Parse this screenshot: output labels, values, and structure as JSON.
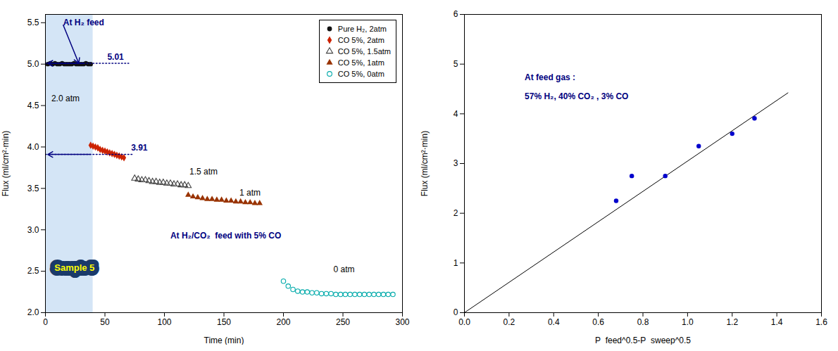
{
  "chart_data": [
    {
      "type": "scatter",
      "xlabel": "Time (min)",
      "ylabel": "Flux (ml/cm²·min)",
      "xlim": [
        0,
        300
      ],
      "ylim": [
        2.0,
        5.6
      ],
      "xticks": [
        0,
        50,
        100,
        150,
        200,
        250,
        300
      ],
      "yticks": [
        {
          "value": 2.0,
          "label": "2.0"
        },
        2.5,
        {
          "value": 3.0,
          "label": "3.0"
        },
        3.5,
        {
          "value": 4.0,
          "label": "4.0"
        },
        4.5,
        {
          "value": 5.0,
          "label": "5.0"
        },
        5.5
      ],
      "grid": false,
      "legend": "upper right",
      "series": [
        {
          "name": "Pure H₂, 2atm",
          "color": "#111111",
          "marker": "circle",
          "x": [
            2,
            4,
            6,
            8,
            10,
            12,
            14,
            16,
            18,
            20,
            22,
            24,
            26,
            28,
            30,
            32,
            34,
            36,
            38
          ],
          "values": [
            5.0,
            5.01,
            5.0,
            5.01,
            5.0,
            5.0,
            5.01,
            5.0,
            5.0,
            5.0,
            5.0,
            5.01,
            5.0,
            5.0,
            5.0,
            5.0,
            5.01,
            5.0,
            5.0
          ]
        },
        {
          "name": "CO 5%, 2atm",
          "color": "#cc2200",
          "marker": "diamond",
          "x": [
            38,
            40,
            42,
            44,
            46,
            48,
            50,
            52,
            54,
            56,
            58,
            60,
            62,
            64,
            66
          ],
          "values": [
            4.02,
            4.01,
            4.0,
            3.99,
            3.97,
            3.96,
            3.95,
            3.94,
            3.93,
            3.92,
            3.91,
            3.9,
            3.89,
            3.88,
            3.87
          ]
        },
        {
          "name": "CO 5%, 1.5atm",
          "color": "#444444",
          "marker": "triangle-open",
          "x": [
            75,
            78,
            81,
            84,
            87,
            90,
            93,
            96,
            99,
            102,
            105,
            108,
            111,
            114,
            117,
            120
          ],
          "values": [
            3.62,
            3.61,
            3.6,
            3.6,
            3.59,
            3.58,
            3.58,
            3.57,
            3.57,
            3.56,
            3.56,
            3.55,
            3.55,
            3.54,
            3.54,
            3.53
          ]
        },
        {
          "name": "CO 5%, 1atm",
          "color": "#993300",
          "marker": "triangle",
          "x": [
            120,
            124,
            128,
            132,
            136,
            140,
            144,
            148,
            152,
            156,
            160,
            164,
            168,
            172,
            176,
            180
          ],
          "values": [
            3.42,
            3.4,
            3.39,
            3.38,
            3.37,
            3.37,
            3.36,
            3.36,
            3.35,
            3.35,
            3.34,
            3.34,
            3.33,
            3.33,
            3.32,
            3.32
          ]
        },
        {
          "name": "CO 5%, 0atm",
          "color": "#00aaaa",
          "marker": "circle-open",
          "x": [
            200,
            204,
            208,
            212,
            216,
            220,
            224,
            228,
            232,
            236,
            240,
            244,
            248,
            252,
            256,
            260,
            264,
            268,
            272,
            276,
            280,
            284,
            288,
            292
          ],
          "values": [
            2.38,
            2.32,
            2.28,
            2.26,
            2.25,
            2.25,
            2.24,
            2.24,
            2.23,
            2.23,
            2.23,
            2.22,
            2.22,
            2.22,
            2.22,
            2.22,
            2.22,
            2.22,
            2.22,
            2.22,
            2.22,
            2.22,
            2.22,
            2.22
          ]
        },
        {
          "type": "line",
          "color": "navy",
          "line_style": "dotted",
          "x": [
            0,
            70
          ],
          "values": [
            5.01,
            5.01
          ]
        },
        {
          "type": "line",
          "color": "navy",
          "line_style": "dotted",
          "x": [
            0,
            73
          ],
          "values": [
            3.91,
            3.91
          ]
        }
      ],
      "spans": [
        {
          "x0": 0,
          "x1": 40,
          "color": "#cce0f5"
        }
      ],
      "arrows": [
        {
          "x1": 32,
          "y1": 5.01,
          "x2": 2,
          "y2": 5.01,
          "color": "navy"
        },
        {
          "x1": 38,
          "y1": 3.91,
          "x2": 2,
          "y2": 3.91,
          "color": "navy"
        },
        {
          "x1": 15,
          "y1": 5.47,
          "x2": 28,
          "y2": 5.01,
          "color": "navy"
        }
      ],
      "annotations": [
        {
          "text": "5.01",
          "x": 52,
          "y": 5.05,
          "color": "navy"
        },
        {
          "text": "3.91",
          "x": 72,
          "y": 3.96,
          "color": "navy"
        },
        {
          "text": "At H₂ feed",
          "x": 15,
          "y": 5.47,
          "color": "navy"
        },
        {
          "text": "2.0 atm",
          "x": 5,
          "y": 4.55,
          "color": "black"
        },
        {
          "text": "1.5 atm",
          "x": 121,
          "y": 3.67,
          "color": "black"
        },
        {
          "text": "1 atm",
          "x": 163,
          "y": 3.41,
          "color": "black"
        },
        {
          "text": "0 atm",
          "x": 242,
          "y": 2.49,
          "color": "black"
        },
        {
          "text": "At H₂/CO₂  feed with 5% CO",
          "x": 105,
          "y": 2.9,
          "color": "navy"
        }
      ],
      "boxed_labels": [
        {
          "text": "Sample 5",
          "x": 4,
          "y": 2.46,
          "color": "yellow",
          "background": "#1a3a6a"
        }
      ]
    },
    {
      "type": "scatter",
      "xlabel": "P_feed^0.5-P_sweep^0.5",
      "ylabel": "Flux (ml/cm²·min)",
      "xlim": [
        0.0,
        1.6
      ],
      "ylim": [
        0,
        6
      ],
      "xticks": [
        {
          "value": 0.0,
          "label": "0.0"
        },
        0.2,
        0.4,
        0.6,
        0.8,
        {
          "value": 1.0,
          "label": "1.0"
        },
        1.2,
        1.4,
        1.6
      ],
      "yticks": [
        0,
        1,
        2,
        3,
        4,
        5,
        6
      ],
      "grid": false,
      "series": [
        {
          "type": "line",
          "color": "black",
          "line_style": "solid",
          "x": [
            0.0,
            1.45
          ],
          "values": [
            0.0,
            4.4225
          ]
        },
        {
          "type": "scatter",
          "color": "#0000cc",
          "marker": "circle",
          "x": [
            0.68,
            0.75,
            0.9,
            1.05,
            1.2,
            1.3
          ],
          "values": [
            2.25,
            2.75,
            2.75,
            3.35,
            3.6,
            3.91
          ]
        }
      ],
      "annotations": [
        {
          "text": "At feed gas :",
          "x": 0.27,
          "y": 4.8,
          "color": "navy"
        },
        {
          "text": "57% H₂, 40% CO₂ , 3% CO",
          "x": 0.27,
          "y": 4.42,
          "color": "navy"
        }
      ]
    }
  ]
}
